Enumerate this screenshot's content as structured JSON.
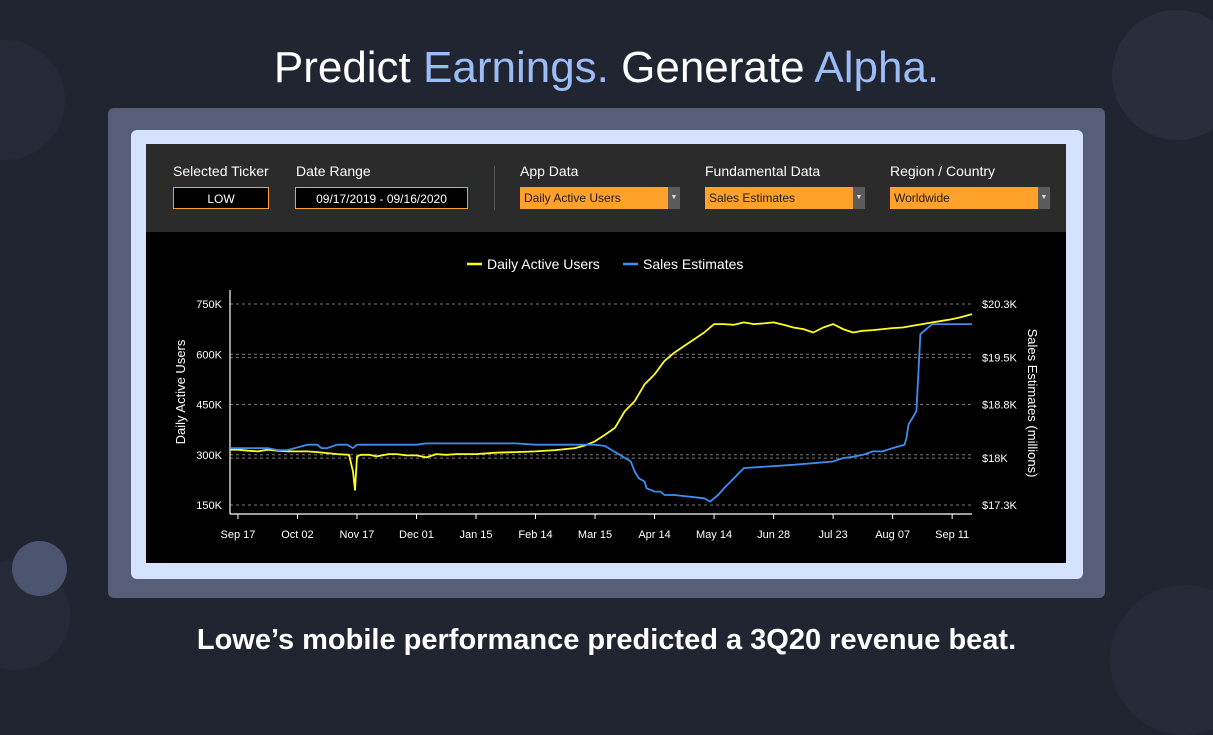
{
  "headline": {
    "part1": "Predict ",
    "part2": "Earnings.",
    "part3": " Generate ",
    "part4": "Alpha."
  },
  "controls": {
    "selected_ticker": {
      "label": "Selected Ticker",
      "value": "LOW"
    },
    "date_range": {
      "label": "Date Range",
      "value": "09/17/2019 - 09/16/2020"
    },
    "app_data": {
      "label": "App Data",
      "value": "Daily Active Users"
    },
    "fundamental_data": {
      "label": "Fundamental Data",
      "value": "Sales Estimates"
    },
    "region": {
      "label": "Region / Country",
      "value": "Worldwide"
    }
  },
  "caption": "Lowe’s mobile performance predicted a 3Q20 revenue beat.",
  "colors": {
    "accent_text": "#9cbcf5",
    "dau_line": "#ffff1e",
    "sales_line": "#3d8ef0",
    "dropdown": "#ffa12b"
  },
  "chart_data": {
    "type": "line",
    "grid": true,
    "legend_position": "top-center",
    "x_tick_labels": [
      "Sep 17",
      "Oct 02",
      "Nov 17",
      "Dec 01",
      "Jan 15",
      "Feb 14",
      "Mar 15",
      "Apr 14",
      "May 14",
      "Jun 28",
      "Jul 23",
      "Aug 07",
      "Sep 11"
    ],
    "x_tick_days": [
      0,
      30,
      60,
      90,
      120,
      150,
      180,
      210,
      240,
      270,
      300,
      330,
      360
    ],
    "x_range_days": [
      -4,
      370
    ],
    "y_left": {
      "label": "Daily Active  Users",
      "ticks": [
        150000,
        300000,
        450000,
        600000,
        750000
      ],
      "tick_labels": [
        "150K",
        "300K",
        "450K",
        "600K",
        "750K"
      ],
      "range": [
        150000,
        750000
      ]
    },
    "y_right": {
      "label": "Sales Estimates (millions)",
      "ticks": [
        17.3,
        18.0,
        18.8,
        19.5,
        20.3
      ],
      "tick_labels": [
        "$17.3K",
        "$18K",
        "$18.8K",
        "$19.5K",
        "$20.3K"
      ],
      "range": [
        17.3,
        20.3
      ]
    },
    "series": [
      {
        "name": "Daily Active Users",
        "axis": "left",
        "x": [
          -4,
          0,
          5,
          10,
          15,
          20,
          25,
          30,
          35,
          40,
          45,
          50,
          56,
          58,
          59,
          60,
          62,
          66,
          70,
          76,
          80,
          85,
          90,
          95,
          100,
          105,
          110,
          120,
          130,
          140,
          150,
          160,
          170,
          175,
          180,
          185,
          190,
          195,
          200,
          205,
          210,
          215,
          220,
          225,
          230,
          235,
          240,
          245,
          250,
          255,
          260,
          265,
          270,
          275,
          280,
          285,
          290,
          295,
          300,
          305,
          310,
          315,
          320,
          325,
          330,
          335,
          340,
          345,
          350,
          355,
          360,
          364,
          370
        ],
        "y": [
          315000,
          315000,
          312000,
          310000,
          315000,
          312000,
          310000,
          310000,
          310000,
          308000,
          305000,
          302000,
          300000,
          250000,
          195000,
          295000,
          300000,
          300000,
          295000,
          302000,
          302000,
          298000,
          298000,
          292000,
          302000,
          300000,
          302000,
          302000,
          306000,
          308000,
          310000,
          314000,
          320000,
          328000,
          340000,
          360000,
          380000,
          430000,
          460000,
          510000,
          540000,
          580000,
          605000,
          625000,
          645000,
          665000,
          690000,
          690000,
          688000,
          695000,
          690000,
          692000,
          695000,
          688000,
          680000,
          675000,
          665000,
          680000,
          690000,
          675000,
          665000,
          670000,
          672000,
          675000,
          678000,
          680000,
          685000,
          690000,
          695000,
          700000,
          705000,
          710000,
          720000
        ]
      },
      {
        "name": "Sales Estimates",
        "axis": "right",
        "x": [
          -4,
          15,
          20,
          25,
          35,
          40,
          42,
          45,
          50,
          55,
          58,
          60,
          62,
          65,
          70,
          90,
          95,
          100,
          105,
          110,
          120,
          130,
          140,
          150,
          160,
          170,
          180,
          185,
          198,
          200,
          202,
          205,
          206,
          210,
          213,
          215,
          220,
          235,
          238,
          240,
          242,
          245,
          250,
          255,
          280,
          300,
          305,
          310,
          315,
          320,
          325,
          330,
          336,
          337,
          338,
          342,
          344,
          350,
          356,
          360,
          364,
          370
        ],
        "y": [
          18.15,
          18.15,
          18.12,
          18.12,
          18.2,
          18.2,
          18.15,
          18.15,
          18.2,
          18.2,
          18.15,
          18.2,
          18.2,
          18.2,
          18.2,
          18.2,
          18.22,
          18.22,
          18.22,
          18.22,
          18.22,
          18.22,
          18.22,
          18.2,
          18.2,
          18.2,
          18.2,
          18.18,
          17.95,
          17.8,
          17.7,
          17.65,
          17.55,
          17.5,
          17.5,
          17.45,
          17.45,
          17.4,
          17.35,
          17.4,
          17.45,
          17.55,
          17.7,
          17.85,
          17.9,
          17.95,
          18.0,
          18.02,
          18.05,
          18.1,
          18.1,
          18.15,
          18.2,
          18.3,
          18.5,
          18.7,
          19.85,
          20.0,
          20.0,
          20.0,
          20.0,
          20.0
        ]
      }
    ]
  }
}
